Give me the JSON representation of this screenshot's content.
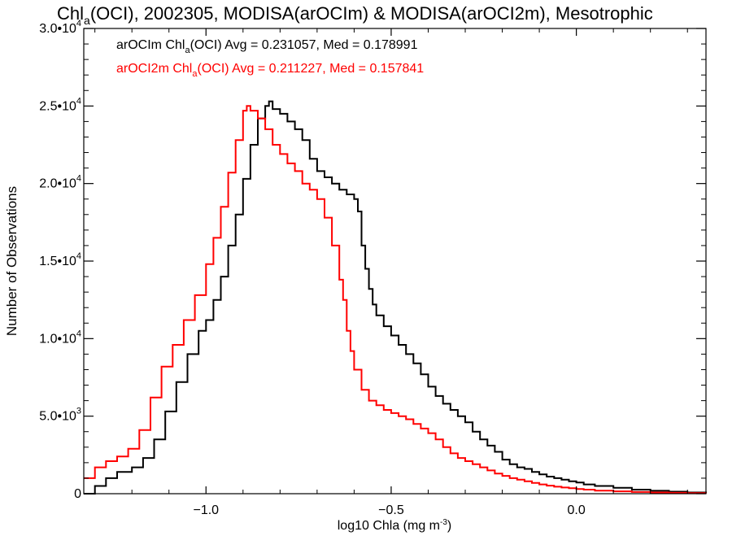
{
  "chart_data": {
    "type": "line",
    "title": {
      "prefix": "Chl",
      "sub": "a",
      "rest": "(OCI), 2002305, MODISA(arOCIm) & MODISA(arOCI2m), Mesotrophic"
    },
    "xlabel": {
      "main": "log10 Chla (mg m",
      "sup": "-3",
      "close": ")"
    },
    "ylabel": "Number of Observations",
    "xlim": [
      -1.33,
      0.35
    ],
    "ylim": [
      0,
      30000
    ],
    "x_ticks": [
      {
        "value": -1.0,
        "label": "−1.0"
      },
      {
        "value": -0.5,
        "label": "−0.5"
      },
      {
        "value": 0.0,
        "label": "0.0"
      }
    ],
    "y_ticks": [
      {
        "value": 0,
        "mant": "0",
        "exp": ""
      },
      {
        "value": 5000,
        "mant": "5.0•10",
        "exp": "3"
      },
      {
        "value": 10000,
        "mant": "1.0•10",
        "exp": "4"
      },
      {
        "value": 15000,
        "mant": "1.5•10",
        "exp": "4"
      },
      {
        "value": 20000,
        "mant": "2.0•10",
        "exp": "4"
      },
      {
        "value": 25000,
        "mant": "2.5•10",
        "exp": "4"
      },
      {
        "value": 30000,
        "mant": "3.0•10",
        "exp": "4"
      }
    ],
    "grid": false,
    "legend_position": "top-left",
    "series": [
      {
        "legend_pre": "arOCIm Chl",
        "legend_sub": "a",
        "legend_post": "(OCI) Avg = 0.231057, Med = 0.178991",
        "color": "#000000",
        "x": [
          -1.33,
          -1.3,
          -1.27,
          -1.24,
          -1.2,
          -1.17,
          -1.14,
          -1.11,
          -1.08,
          -1.05,
          -1.02,
          -1.0,
          -0.98,
          -0.96,
          -0.94,
          -0.92,
          -0.9,
          -0.88,
          -0.86,
          -0.84,
          -0.83,
          -0.82,
          -0.8,
          -0.78,
          -0.76,
          -0.74,
          -0.72,
          -0.7,
          -0.68,
          -0.66,
          -0.64,
          -0.62,
          -0.6,
          -0.59,
          -0.58,
          -0.57,
          -0.56,
          -0.55,
          -0.54,
          -0.52,
          -0.5,
          -0.48,
          -0.46,
          -0.44,
          -0.42,
          -0.4,
          -0.38,
          -0.36,
          -0.34,
          -0.32,
          -0.3,
          -0.28,
          -0.26,
          -0.24,
          -0.22,
          -0.2,
          -0.18,
          -0.16,
          -0.14,
          -0.12,
          -0.1,
          -0.08,
          -0.06,
          -0.04,
          -0.02,
          0.0,
          0.02,
          0.05,
          0.1,
          0.15,
          0.2,
          0.25,
          0.3,
          0.35
        ],
        "y": [
          0,
          500,
          1000,
          1400,
          1700,
          2300,
          3500,
          5300,
          7200,
          9000,
          10500,
          11200,
          12500,
          14000,
          16000,
          18000,
          20300,
          22500,
          24200,
          25000,
          25300,
          24800,
          24500,
          24000,
          23500,
          22800,
          21600,
          20800,
          20400,
          20000,
          19600,
          19300,
          19000,
          18200,
          16000,
          14500,
          13200,
          12200,
          11500,
          10800,
          10200,
          9600,
          9000,
          8400,
          7700,
          6900,
          6300,
          5800,
          5400,
          5000,
          4600,
          4000,
          3500,
          3100,
          2700,
          2200,
          1900,
          1700,
          1600,
          1400,
          1250,
          1100,
          1000,
          900,
          800,
          720,
          600,
          500,
          380,
          260,
          190,
          130,
          80,
          40
        ]
      },
      {
        "legend_pre": "arOCI2m Chl",
        "legend_sub": "a",
        "legend_post": "(OCI) Avg = 0.211227, Med = 0.157841",
        "color": "#ff0000",
        "x": [
          -1.33,
          -1.3,
          -1.27,
          -1.24,
          -1.21,
          -1.18,
          -1.15,
          -1.12,
          -1.09,
          -1.06,
          -1.03,
          -1.0,
          -0.98,
          -0.96,
          -0.94,
          -0.92,
          -0.9,
          -0.89,
          -0.88,
          -0.86,
          -0.84,
          -0.82,
          -0.8,
          -0.78,
          -0.76,
          -0.74,
          -0.72,
          -0.7,
          -0.68,
          -0.66,
          -0.64,
          -0.63,
          -0.62,
          -0.61,
          -0.6,
          -0.58,
          -0.56,
          -0.54,
          -0.52,
          -0.5,
          -0.48,
          -0.46,
          -0.44,
          -0.42,
          -0.4,
          -0.38,
          -0.36,
          -0.34,
          -0.32,
          -0.3,
          -0.28,
          -0.26,
          -0.24,
          -0.22,
          -0.2,
          -0.18,
          -0.16,
          -0.14,
          -0.12,
          -0.1,
          -0.08,
          -0.06,
          -0.04,
          -0.02,
          0.0,
          0.02,
          0.05,
          0.1,
          0.15,
          0.2,
          0.25,
          0.3,
          0.35
        ],
        "y": [
          1000,
          1700,
          2100,
          2400,
          2900,
          4100,
          6200,
          8200,
          9600,
          11200,
          12800,
          14800,
          16500,
          18500,
          20700,
          22800,
          24700,
          25000,
          24700,
          24200,
          23500,
          22500,
          21900,
          21300,
          20800,
          20000,
          19600,
          19000,
          17800,
          16000,
          13800,
          12500,
          10500,
          9200,
          8000,
          6700,
          6000,
          5700,
          5400,
          5200,
          5000,
          4800,
          4500,
          4200,
          3900,
          3500,
          3000,
          2600,
          2300,
          2100,
          1900,
          1700,
          1500,
          1300,
          1150,
          1000,
          900,
          800,
          700,
          600,
          520,
          450,
          400,
          350,
          300,
          260,
          200,
          150,
          110,
          80,
          60,
          40,
          20
        ]
      }
    ]
  }
}
